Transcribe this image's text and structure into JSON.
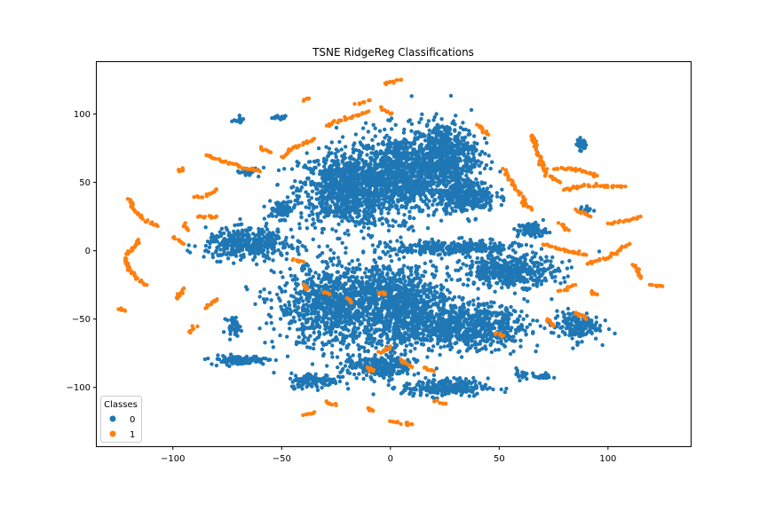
{
  "chart_data": {
    "type": "scatter",
    "title": "TSNE RidgeReg Classifications",
    "xlabel": "",
    "ylabel": "",
    "xlim": [
      -135,
      138
    ],
    "ylim": [
      -143,
      138
    ],
    "xticks": [
      -100,
      -50,
      0,
      50,
      100
    ],
    "yticks": [
      -100,
      -50,
      0,
      50,
      100
    ],
    "xtick_labels": [
      "−100",
      "−50",
      "0",
      "50",
      "100"
    ],
    "ytick_labels": [
      "−100",
      "−50",
      "0",
      "50",
      "100"
    ],
    "grid": false,
    "legend": {
      "title": "Classes",
      "placement": "lower-left",
      "entries": [
        {
          "label": "0",
          "color": "#1f77b4"
        },
        {
          "label": "1",
          "color": "#ff7f0e"
        }
      ]
    },
    "series": [
      {
        "name": "0",
        "color": "#1f77b4",
        "clusters": [
          {
            "cx": -20,
            "cy": 45,
            "rx": 20,
            "ry": 25,
            "n": 900
          },
          {
            "cx": 5,
            "cy": 55,
            "rx": 20,
            "ry": 28,
            "n": 900
          },
          {
            "cx": 25,
            "cy": 70,
            "rx": 14,
            "ry": 22,
            "n": 600
          },
          {
            "cx": 35,
            "cy": 40,
            "rx": 12,
            "ry": 10,
            "n": 300
          },
          {
            "cx": -65,
            "cy": 5,
            "rx": 18,
            "ry": 10,
            "n": 400
          },
          {
            "cx": -50,
            "cy": 30,
            "rx": 6,
            "ry": 6,
            "n": 80
          },
          {
            "cx": 30,
            "cy": 2,
            "rx": 28,
            "ry": 5,
            "n": 300
          },
          {
            "cx": 55,
            "cy": -15,
            "rx": 20,
            "ry": 10,
            "n": 400
          },
          {
            "cx": -25,
            "cy": -40,
            "rx": 25,
            "ry": 28,
            "n": 1000
          },
          {
            "cx": 5,
            "cy": -40,
            "rx": 20,
            "ry": 30,
            "n": 900
          },
          {
            "cx": 35,
            "cy": -55,
            "rx": 25,
            "ry": 15,
            "n": 700
          },
          {
            "cx": -5,
            "cy": -85,
            "rx": 15,
            "ry": 8,
            "n": 250
          },
          {
            "cx": 25,
            "cy": -100,
            "rx": 18,
            "ry": 6,
            "n": 250
          },
          {
            "cx": -35,
            "cy": -95,
            "rx": 10,
            "ry": 5,
            "n": 120
          },
          {
            "cx": -70,
            "cy": -80,
            "rx": 12,
            "ry": 3,
            "n": 100
          },
          {
            "cx": -72,
            "cy": -55,
            "rx": 3,
            "ry": 6,
            "n": 40
          },
          {
            "cx": 65,
            "cy": 15,
            "rx": 6,
            "ry": 5,
            "n": 80
          },
          {
            "cx": 85,
            "cy": -55,
            "rx": 10,
            "ry": 10,
            "n": 150
          },
          {
            "cx": 88,
            "cy": 78,
            "rx": 2,
            "ry": 4,
            "n": 30
          },
          {
            "cx": -70,
            "cy": 95,
            "rx": 3,
            "ry": 2,
            "n": 15
          },
          {
            "cx": -52,
            "cy": 98,
            "rx": 4,
            "ry": 2,
            "n": 15
          },
          {
            "cx": -65,
            "cy": 57,
            "rx": 5,
            "ry": 3,
            "n": 25
          },
          {
            "cx": 70,
            "cy": -92,
            "rx": 4,
            "ry": 2,
            "n": 25
          },
          {
            "cx": 60,
            "cy": -90,
            "rx": 2,
            "ry": 4,
            "n": 15
          },
          {
            "cx": 90,
            "cy": 30,
            "rx": 3,
            "ry": 3,
            "n": 15
          }
        ]
      },
      {
        "name": "1",
        "color": "#ff7f0e",
        "curves": [
          [
            [
              -120,
              38
            ],
            [
              -118,
              30
            ],
            [
              -113,
              22
            ],
            [
              -107,
              18
            ]
          ],
          [
            [
              -115,
              8
            ],
            [
              -122,
              -5
            ],
            [
              -120,
              -15
            ],
            [
              -112,
              -25
            ]
          ],
          [
            [
              -85,
              70
            ],
            [
              -78,
              66
            ],
            [
              -70,
              62
            ],
            [
              -60,
              58
            ]
          ],
          [
            [
              -90,
              40
            ],
            [
              -85,
              40
            ],
            [
              -80,
              45
            ]
          ],
          [
            [
              -95,
              60
            ],
            [
              -97,
              58
            ]
          ],
          [
            [
              -60,
              75
            ],
            [
              -55,
              72
            ]
          ],
          [
            [
              -50,
              68
            ],
            [
              -45,
              75
            ],
            [
              -35,
              82
            ]
          ],
          [
            [
              -40,
              110
            ],
            [
              -38,
              111
            ]
          ],
          [
            [
              -30,
              92
            ],
            [
              -20,
              97
            ],
            [
              -10,
              102
            ]
          ],
          [
            [
              -15,
              107
            ],
            [
              -10,
              110
            ]
          ],
          [
            [
              -5,
              105
            ],
            [
              0,
              100
            ]
          ],
          [
            [
              -3,
              122
            ],
            [
              5,
              125
            ]
          ],
          [
            [
              -88,
              25
            ],
            [
              -80,
              25
            ]
          ],
          [
            [
              -95,
              20
            ],
            [
              -93,
              15
            ]
          ],
          [
            [
              -100,
              10
            ],
            [
              -95,
              5
            ]
          ],
          [
            [
              -95,
              -28
            ],
            [
              -98,
              -35
            ]
          ],
          [
            [
              -80,
              -35
            ],
            [
              -85,
              -42
            ]
          ],
          [
            [
              -90,
              -55
            ],
            [
              -92,
              -60
            ]
          ],
          [
            [
              -125,
              -42
            ],
            [
              -122,
              -44
            ]
          ],
          [
            [
              -45,
              -7
            ],
            [
              -40,
              -8
            ]
          ],
          [
            [
              -40,
              -25
            ],
            [
              -38,
              -28
            ]
          ],
          [
            [
              -30,
              -30
            ],
            [
              -28,
              -32
            ]
          ],
          [
            [
              40,
              92
            ],
            [
              45,
              85
            ]
          ],
          [
            [
              52,
              60
            ],
            [
              58,
              45
            ],
            [
              62,
              35
            ]
          ],
          [
            [
              65,
              85
            ],
            [
              68,
              70
            ],
            [
              72,
              55
            ],
            [
              78,
              50
            ]
          ],
          [
            [
              75,
              60
            ],
            [
              85,
              60
            ],
            [
              95,
              55
            ]
          ],
          [
            [
              80,
              45
            ],
            [
              90,
              48
            ],
            [
              100,
              47
            ],
            [
              108,
              47
            ]
          ],
          [
            [
              60,
              35
            ],
            [
              65,
              30
            ]
          ],
          [
            [
              85,
              30
            ],
            [
              92,
              25
            ]
          ],
          [
            [
              78,
              20
            ],
            [
              82,
              15
            ]
          ],
          [
            [
              70,
              5
            ],
            [
              80,
              0
            ],
            [
              90,
              -3
            ]
          ],
          [
            [
              90,
              -10
            ],
            [
              100,
              -5
            ],
            [
              110,
              5
            ]
          ],
          [
            [
              100,
              20
            ],
            [
              110,
              22
            ],
            [
              115,
              25
            ]
          ],
          [
            [
              112,
              -10
            ],
            [
              115,
              -20
            ]
          ],
          [
            [
              120,
              -25
            ],
            [
              125,
              -26
            ]
          ],
          [
            [
              78,
              -30
            ],
            [
              85,
              -25
            ]
          ],
          [
            [
              92,
              -30
            ],
            [
              95,
              -32
            ]
          ],
          [
            [
              85,
              -45
            ],
            [
              90,
              -50
            ]
          ],
          [
            [
              72,
              -50
            ],
            [
              75,
              -55
            ]
          ],
          [
            [
              -5,
              -75
            ],
            [
              0,
              -70
            ]
          ],
          [
            [
              5,
              -80
            ],
            [
              10,
              -85
            ]
          ],
          [
            [
              -10,
              -85
            ],
            [
              -8,
              -88
            ]
          ],
          [
            [
              15,
              -85
            ],
            [
              20,
              -88
            ]
          ],
          [
            [
              -40,
              -120
            ],
            [
              -35,
              -118
            ]
          ],
          [
            [
              -30,
              -110
            ],
            [
              -25,
              -113
            ]
          ],
          [
            [
              -10,
              -115
            ],
            [
              -8,
              -117
            ]
          ],
          [
            [
              0,
              -125
            ],
            [
              10,
              -127
            ]
          ],
          [
            [
              20,
              -110
            ],
            [
              25,
              -112
            ]
          ],
          [
            [
              48,
              -60
            ],
            [
              52,
              -62
            ]
          ],
          [
            [
              -20,
              -35
            ],
            [
              -18,
              -38
            ]
          ],
          [
            [
              -5,
              -30
            ],
            [
              -3,
              -32
            ]
          ]
        ]
      }
    ]
  }
}
